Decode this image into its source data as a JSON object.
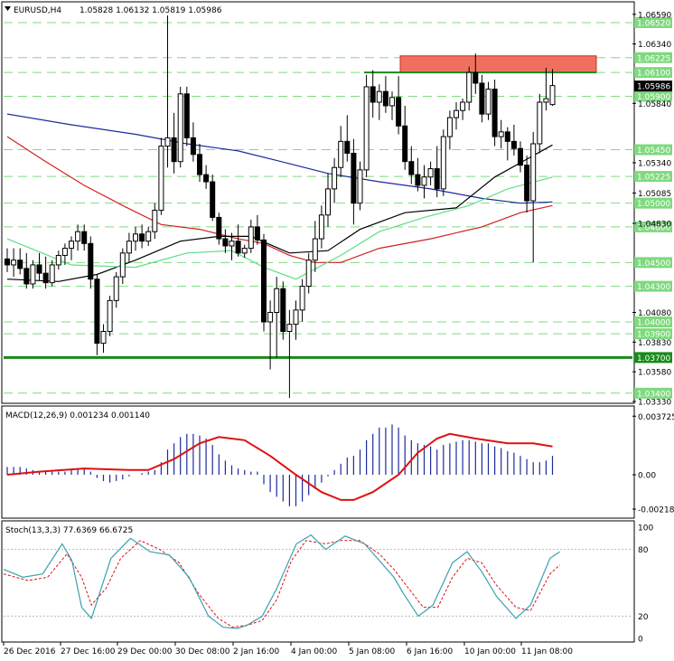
{
  "header": {
    "symbol_tf": "EURUSD,H4",
    "ohlc": "1.05828 1.06132 1.05819 1.05986"
  },
  "colors": {
    "bull": "#ffffff",
    "bear": "#000000",
    "ma_fast": "#5fdc8a",
    "ma_mid": "#000000",
    "ma_slow_red": "#d02020",
    "ma_blue": "#1c2b9c",
    "support": "#1a8a1a",
    "resistance_zone": "#f07060",
    "level_dash": "#7fdc7f",
    "macd_hist": "#1c2b9c",
    "macd_signal": "#e01010",
    "stoch_main": "#3aa0b0",
    "stoch_signal": "#e01010"
  },
  "price_axis": {
    "labels": [
      "1.06590",
      "1.06340",
      "1.05840",
      "1.05340",
      "1.05085",
      "1.04830",
      "1.04080",
      "1.03830",
      "1.03580",
      "1.03330"
    ],
    "current": "1.05986"
  },
  "levels": [
    {
      "price": 1.0652,
      "label": "1.06520"
    },
    {
      "price": 1.06225,
      "label": "1.06225"
    },
    {
      "price": 1.061,
      "label": "1.06100"
    },
    {
      "price": 1.059,
      "label": "1.05900"
    },
    {
      "price": 1.0545,
      "label": "1.05450"
    },
    {
      "price": 1.05225,
      "label": "1.05225"
    },
    {
      "price": 1.05,
      "label": "1.05000"
    },
    {
      "price": 1.048,
      "label": "1.04800"
    },
    {
      "price": 1.045,
      "label": "1.04500"
    },
    {
      "price": 1.043,
      "label": "1.04300"
    },
    {
      "price": 1.04,
      "label": "1.04000"
    },
    {
      "price": 1.039,
      "label": "1.03900"
    },
    {
      "price": 1.034,
      "label": "1.03400"
    }
  ],
  "support": {
    "price": 1.037,
    "label": "1.03700"
  },
  "resistance": {
    "low": 1.061,
    "high": 1.0624
  },
  "macd": {
    "title": "MACD(12,26,9) 0.001234 0.001140",
    "axis": [
      "0.003725",
      "0.00",
      "-0.002184"
    ],
    "range": [
      -0.0027,
      0.0042
    ]
  },
  "stoch": {
    "title": "Stoch(13,3,3) 77.6369 66.6725",
    "axis": [
      "100",
      "80",
      "20",
      "0"
    ]
  },
  "time_axis": [
    "26 Dec 2016",
    "27 Dec 16:00",
    "29 Dec 00:00",
    "30 Dec 08:00",
    "2 Jan 16:00",
    "4 Jan 00:00",
    "5 Jan 08:00",
    "6 Jan 16:00",
    "10 Jan 00:00",
    "11 Jan 08:00"
  ],
  "chart_data": {
    "type": "candlestick",
    "symbol": "EURUSD",
    "timeframe": "H4",
    "ylim": [
      1.0333,
      1.0668
    ],
    "candles": [
      [
        1.0453,
        1.0462,
        1.0442,
        1.0448
      ],
      [
        1.0448,
        1.0462,
        1.0438,
        1.0452
      ],
      [
        1.0452,
        1.0462,
        1.044,
        1.0445
      ],
      [
        1.0445,
        1.0458,
        1.0428,
        1.0432
      ],
      [
        1.0432,
        1.0452,
        1.0428,
        1.0448
      ],
      [
        1.0448,
        1.0458,
        1.0435,
        1.0441
      ],
      [
        1.0441,
        1.0455,
        1.0428,
        1.0433
      ],
      [
        1.0433,
        1.0452,
        1.043,
        1.0448
      ],
      [
        1.0448,
        1.046,
        1.0444,
        1.0456
      ],
      [
        1.0456,
        1.0466,
        1.0448,
        1.0462
      ],
      [
        1.0462,
        1.0472,
        1.0452,
        1.0468
      ],
      [
        1.0468,
        1.0482,
        1.046,
        1.0476
      ],
      [
        1.0476,
        1.0482,
        1.046,
        1.0466
      ],
      [
        1.0466,
        1.0472,
        1.0428,
        1.0436
      ],
      [
        1.0436,
        1.044,
        1.0372,
        1.0382
      ],
      [
        1.0382,
        1.0398,
        1.0374,
        1.0392
      ],
      [
        1.0392,
        1.0422,
        1.0388,
        1.0418
      ],
      [
        1.0418,
        1.0442,
        1.0412,
        1.0438
      ],
      [
        1.0438,
        1.0462,
        1.0432,
        1.0458
      ],
      [
        1.0458,
        1.0475,
        1.045,
        1.0468
      ],
      [
        1.0468,
        1.048,
        1.046,
        1.0474
      ],
      [
        1.0474,
        1.0482,
        1.0462,
        1.0468
      ],
      [
        1.0468,
        1.048,
        1.0464,
        1.0476
      ],
      [
        1.0476,
        1.05,
        1.047,
        1.0494
      ],
      [
        1.0494,
        1.0555,
        1.049,
        1.0548
      ],
      [
        1.0548,
        1.0658,
        1.053,
        1.0555
      ],
      [
        1.0555,
        1.0576,
        1.0525,
        1.0535
      ],
      [
        1.0535,
        1.0598,
        1.053,
        1.0592
      ],
      [
        1.0592,
        1.0598,
        1.0548,
        1.0555
      ],
      [
        1.0555,
        1.0568,
        1.0535,
        1.0541
      ],
      [
        1.0541,
        1.055,
        1.0518,
        1.0524
      ],
      [
        1.0524,
        1.0532,
        1.0512,
        1.0518
      ],
      [
        1.0518,
        1.0524,
        1.0485,
        1.0488
      ],
      [
        1.0488,
        1.0492,
        1.0465,
        1.047
      ],
      [
        1.047,
        1.0478,
        1.0458,
        1.0464
      ],
      [
        1.0464,
        1.0475,
        1.0452,
        1.0468
      ],
      [
        1.0468,
        1.0482,
        1.0455,
        1.0458
      ],
      [
        1.0458,
        1.0465,
        1.0454,
        1.0462
      ],
      [
        1.0462,
        1.0486,
        1.0458,
        1.048
      ],
      [
        1.048,
        1.049,
        1.0465,
        1.0469
      ],
      [
        1.0469,
        1.0474,
        1.0392,
        1.04
      ],
      [
        1.04,
        1.0418,
        1.036,
        1.0408
      ],
      [
        1.0408,
        1.0438,
        1.037,
        1.0428
      ],
      [
        1.0428,
        1.0434,
        1.0385,
        1.0392
      ],
      [
        1.0392,
        1.041,
        1.0336,
        1.0398
      ],
      [
        1.0398,
        1.0418,
        1.0385,
        1.041
      ],
      [
        1.041,
        1.0436,
        1.04,
        1.043
      ],
      [
        1.043,
        1.0458,
        1.0424,
        1.0452
      ],
      [
        1.0452,
        1.0485,
        1.0442,
        1.047
      ],
      [
        1.047,
        1.0498,
        1.0462,
        1.049
      ],
      [
        1.049,
        1.0525,
        1.048,
        1.0512
      ],
      [
        1.0512,
        1.0538,
        1.05,
        1.053
      ],
      [
        1.053,
        1.0565,
        1.0522,
        1.0552
      ],
      [
        1.0552,
        1.0574,
        1.0535,
        1.0542
      ],
      [
        1.0542,
        1.0554,
        1.0482,
        1.05
      ],
      [
        1.05,
        1.0535,
        1.0494,
        1.0528
      ],
      [
        1.0528,
        1.0608,
        1.0522,
        1.0598
      ],
      [
        1.0598,
        1.0612,
        1.0572,
        1.0585
      ],
      [
        1.0585,
        1.06,
        1.057,
        1.0594
      ],
      [
        1.0594,
        1.0607,
        1.0576,
        1.0582
      ],
      [
        1.0582,
        1.0594,
        1.057,
        1.0589
      ],
      [
        1.0589,
        1.0607,
        1.0558,
        1.0565
      ],
      [
        1.0565,
        1.0582,
        1.0528,
        1.0535
      ],
      [
        1.0535,
        1.0548,
        1.0516,
        1.0524
      ],
      [
        1.0524,
        1.0538,
        1.051,
        1.0515
      ],
      [
        1.0515,
        1.0532,
        1.0504,
        1.0522
      ],
      [
        1.0522,
        1.0535,
        1.0515,
        1.0529
      ],
      [
        1.0529,
        1.0548,
        1.0505,
        1.0512
      ],
      [
        1.0512,
        1.0562,
        1.0506,
        1.0556
      ],
      [
        1.0556,
        1.0578,
        1.0545,
        1.0572
      ],
      [
        1.0572,
        1.0585,
        1.0562,
        1.0578
      ],
      [
        1.0578,
        1.0588,
        1.057,
        1.0585
      ],
      [
        1.0585,
        1.0615,
        1.0578,
        1.061
      ],
      [
        1.061,
        1.0626,
        1.0592,
        1.0601
      ],
      [
        1.0601,
        1.0608,
        1.0568,
        1.0575
      ],
      [
        1.0575,
        1.0602,
        1.057,
        1.0596
      ],
      [
        1.0596,
        1.0604,
        1.0548,
        1.0556
      ],
      [
        1.0556,
        1.057,
        1.0546,
        1.056
      ],
      [
        1.056,
        1.0564,
        1.0536,
        1.0552
      ],
      [
        1.0552,
        1.0566,
        1.054,
        1.0546
      ],
      [
        1.0546,
        1.0552,
        1.0526,
        1.0532
      ],
      [
        1.0532,
        1.054,
        1.0492,
        1.0502
      ],
      [
        1.0502,
        1.056,
        1.045,
        1.055
      ],
      [
        1.055,
        1.0592,
        1.0542,
        1.0585
      ],
      [
        1.0585,
        1.0614,
        1.0578,
        1.0588
      ],
      [
        1.0583,
        1.0613,
        1.0582,
        1.0599
      ]
    ],
    "ma_fast": [
      [
        0,
        1.047
      ],
      [
        10,
        1.0448
      ],
      [
        20,
        1.0446
      ],
      [
        28,
        1.0458
      ],
      [
        35,
        1.046
      ],
      [
        40,
        1.0446
      ],
      [
        45,
        1.0436
      ],
      [
        52,
        1.0456
      ],
      [
        58,
        1.0476
      ],
      [
        65,
        1.0488
      ],
      [
        72,
        1.0498
      ],
      [
        78,
        1.0512
      ],
      [
        85,
        1.0522
      ]
    ],
    "ma_mid": [
      [
        0,
        1.0436
      ],
      [
        8,
        1.0434
      ],
      [
        14,
        1.044
      ],
      [
        20,
        1.0452
      ],
      [
        27,
        1.0468
      ],
      [
        33,
        1.0472
      ],
      [
        38,
        1.0472
      ],
      [
        44,
        1.0458
      ],
      [
        50,
        1.046
      ],
      [
        55,
        1.0478
      ],
      [
        62,
        1.0492
      ],
      [
        70,
        1.0496
      ],
      [
        76,
        1.0522
      ],
      [
        82,
        1.054
      ],
      [
        85,
        1.0549
      ]
    ],
    "ma_red": [
      [
        0,
        1.0556
      ],
      [
        6,
        1.0535
      ],
      [
        12,
        1.0515
      ],
      [
        18,
        1.0498
      ],
      [
        24,
        1.0482
      ],
      [
        30,
        1.0478
      ],
      [
        36,
        1.047
      ],
      [
        40,
        1.0466
      ],
      [
        44,
        1.0456
      ],
      [
        48,
        1.045
      ],
      [
        52,
        1.045
      ],
      [
        58,
        1.0462
      ],
      [
        66,
        1.047
      ],
      [
        74,
        1.048
      ],
      [
        80,
        1.0492
      ],
      [
        85,
        1.0498
      ]
    ],
    "ma_blue": [
      [
        0,
        1.0575
      ],
      [
        10,
        1.0566
      ],
      [
        20,
        1.0558
      ],
      [
        28,
        1.055
      ],
      [
        36,
        1.0544
      ],
      [
        42,
        1.0536
      ],
      [
        50,
        1.0525
      ],
      [
        58,
        1.0518
      ],
      [
        66,
        1.0512
      ],
      [
        74,
        1.0504
      ],
      [
        80,
        1.05
      ],
      [
        85,
        1.0501
      ]
    ],
    "macd_hist": [
      0.0005,
      0.0005,
      0.0005,
      0.0004,
      0.0003,
      0.0002,
      0.0002,
      0.0002,
      0.0002,
      0.0002,
      0.0003,
      0.0004,
      0.0004,
      0.0002,
      -0.0002,
      -0.0004,
      -0.0005,
      -0.0004,
      -0.0003,
      -0.0001,
      0.0,
      0.0001,
      0.0002,
      0.0003,
      0.0008,
      0.0016,
      0.002,
      0.0024,
      0.0026,
      0.0026,
      0.0025,
      0.0023,
      0.0019,
      0.0013,
      0.0009,
      0.0006,
      0.0004,
      0.0003,
      0.0002,
      0.0002,
      -0.0006,
      -0.0011,
      -0.0014,
      -0.0017,
      -0.002,
      -0.002,
      -0.0017,
      -0.0013,
      -0.0009,
      -0.0005,
      -0.0001,
      0.0003,
      0.0007,
      0.0011,
      0.0012,
      0.0016,
      0.0022,
      0.0026,
      0.003,
      0.003,
      0.0032,
      0.003,
      0.0025,
      0.0022,
      0.002,
      0.0019,
      0.0018,
      0.0016,
      0.0019,
      0.002,
      0.0021,
      0.0022,
      0.0022,
      0.0021,
      0.002,
      0.002,
      0.0018,
      0.0017,
      0.0015,
      0.0014,
      0.0012,
      0.001,
      0.0008,
      0.0008,
      0.0009,
      0.0012
    ],
    "macd_signal": [
      [
        0,
        0.0
      ],
      [
        5,
        0.0002
      ],
      [
        12,
        0.0004
      ],
      [
        19,
        0.0003
      ],
      [
        22,
        0.0003
      ],
      [
        26,
        0.001
      ],
      [
        30,
        0.002
      ],
      [
        33,
        0.0024
      ],
      [
        37,
        0.0022
      ],
      [
        41,
        0.0012
      ],
      [
        45,
        0.0
      ],
      [
        49,
        -0.0011
      ],
      [
        52,
        -0.0016
      ],
      [
        54,
        -0.0016
      ],
      [
        57,
        -0.0011
      ],
      [
        61,
        0.0
      ],
      [
        64,
        0.0014
      ],
      [
        67,
        0.0023
      ],
      [
        69,
        0.0026
      ],
      [
        73,
        0.0023
      ],
      [
        78,
        0.002
      ],
      [
        82,
        0.002
      ],
      [
        85,
        0.0018
      ]
    ],
    "stoch_main": [
      [
        0,
        62
      ],
      [
        4,
        55
      ],
      [
        8,
        58
      ],
      [
        12,
        85
      ],
      [
        14,
        70
      ],
      [
        16,
        28
      ],
      [
        18,
        18
      ],
      [
        22,
        72
      ],
      [
        26,
        90
      ],
      [
        30,
        78
      ],
      [
        34,
        75
      ],
      [
        38,
        55
      ],
      [
        42,
        20
      ],
      [
        45,
        10
      ],
      [
        48,
        9
      ],
      [
        50,
        12
      ],
      [
        53,
        20
      ],
      [
        56,
        45
      ],
      [
        60,
        85
      ],
      [
        63,
        93
      ],
      [
        66,
        80
      ],
      [
        70,
        92
      ],
      [
        74,
        85
      ],
      [
        77,
        70
      ],
      [
        80,
        55
      ],
      [
        82,
        40
      ],
      [
        85,
        20
      ],
      [
        88,
        30
      ],
      [
        92,
        68
      ],
      [
        95,
        78
      ],
      [
        98,
        60
      ],
      [
        101,
        38
      ],
      [
        105,
        18
      ],
      [
        108,
        30
      ],
      [
        112,
        72
      ],
      [
        114,
        78
      ]
    ],
    "stoch_signal": [
      [
        0,
        58
      ],
      [
        5,
        52
      ],
      [
        9,
        55
      ],
      [
        13,
        76
      ],
      [
        16,
        55
      ],
      [
        18,
        30
      ],
      [
        21,
        45
      ],
      [
        24,
        72
      ],
      [
        28,
        88
      ],
      [
        32,
        80
      ],
      [
        36,
        68
      ],
      [
        40,
        40
      ],
      [
        44,
        18
      ],
      [
        47,
        10
      ],
      [
        50,
        12
      ],
      [
        53,
        16
      ],
      [
        56,
        35
      ],
      [
        59,
        70
      ],
      [
        62,
        88
      ],
      [
        66,
        85
      ],
      [
        69,
        88
      ],
      [
        73,
        88
      ],
      [
        77,
        76
      ],
      [
        80,
        62
      ],
      [
        83,
        45
      ],
      [
        86,
        28
      ],
      [
        89,
        28
      ],
      [
        92,
        55
      ],
      [
        95,
        72
      ],
      [
        98,
        68
      ],
      [
        101,
        48
      ],
      [
        105,
        28
      ],
      [
        108,
        25
      ],
      [
        112,
        58
      ],
      [
        114,
        66
      ]
    ]
  }
}
